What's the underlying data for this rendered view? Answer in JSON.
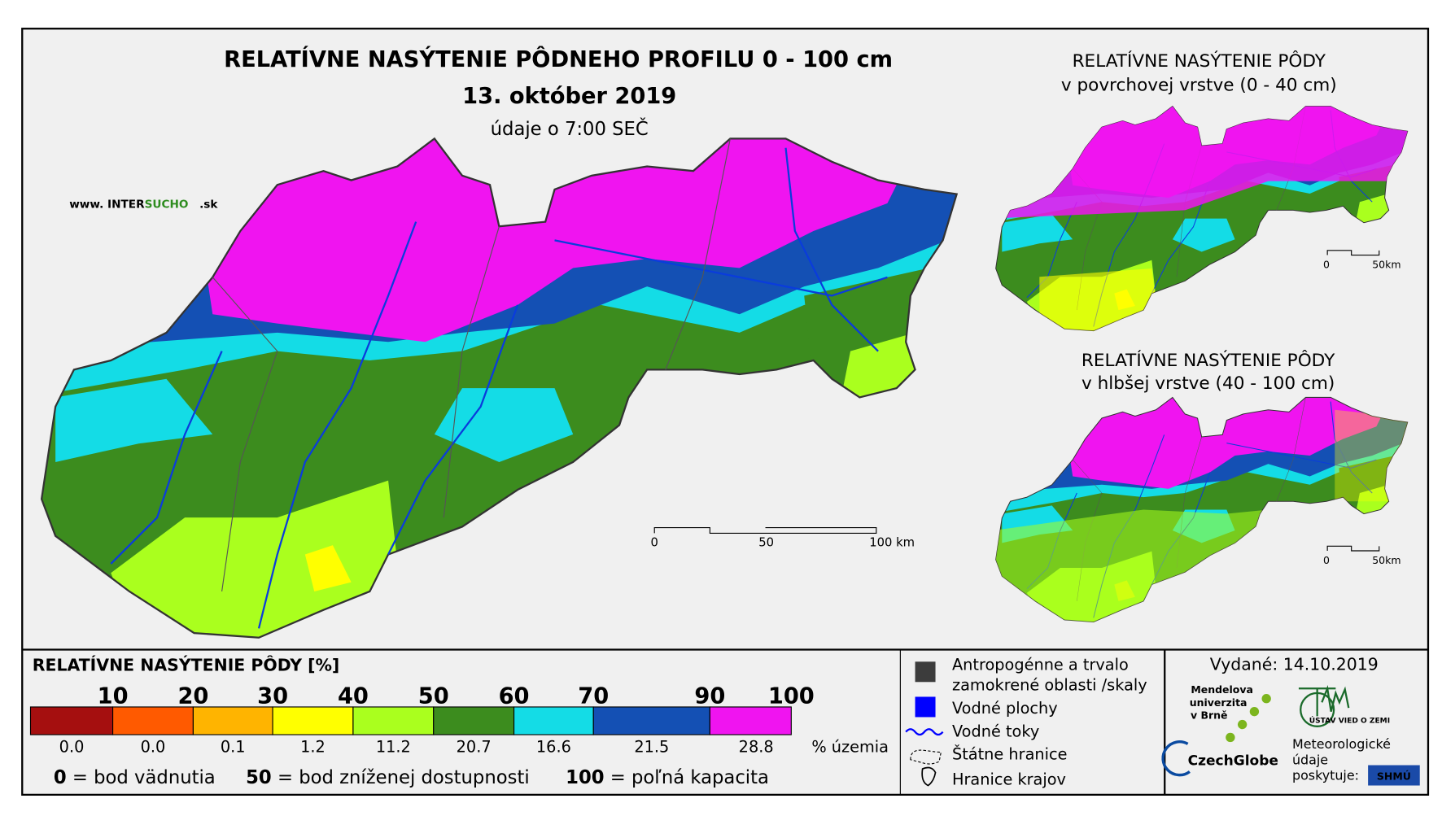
{
  "title": "RELATÍVNE NASÝTENIE PÔDNEHO PROFILU 0 - 100 cm",
  "date": "13. október 2019",
  "time_note": "údaje o 7:00 SEČ",
  "website": {
    "prefix": "www. INTER",
    "highlight": "SUCHO",
    "suffix": ".sk"
  },
  "main_scale": [
    "0",
    "50",
    "100 km"
  ],
  "insets": [
    {
      "title": [
        "RELATÍVNE NASÝTENIE PÔDY",
        "v povrchovej vrstve (0 - 40 cm)"
      ],
      "scale": [
        "0",
        "50km"
      ]
    },
    {
      "title": [
        "RELATÍVNE NASÝTENIE PÔDY",
        "v hlbšej vrstve (40 - 100 cm)"
      ],
      "scale": [
        "0",
        "50km"
      ]
    }
  ],
  "legend": {
    "title": "RELATÍVNE NASÝTENIE PÔDY [%]",
    "thresholds": [
      "10",
      "20",
      "30",
      "40",
      "50",
      "60",
      "70",
      "90",
      "100"
    ],
    "classes": [
      {
        "color": "#a50f0f",
        "share": "0.0"
      },
      {
        "color": "#ff5a00",
        "share": "0.0"
      },
      {
        "color": "#ffb400",
        "share": "0.1"
      },
      {
        "color": "#ffff00",
        "share": "1.2"
      },
      {
        "color": "#aaff1e",
        "share": "11.2"
      },
      {
        "color": "#3c8c1e",
        "share": "20.7"
      },
      {
        "color": "#14dce6",
        "share": "16.6"
      },
      {
        "color": "#1450b4",
        "share": "21.5"
      },
      {
        "color": "#f014f0",
        "share": "28.8"
      }
    ],
    "unit": "% územia",
    "notes": [
      {
        "value": "0",
        "text": "= bod vädnutia"
      },
      {
        "value": "50",
        "text": "= bod zníženej dostupnosti"
      },
      {
        "value": "100",
        "text": "= poľná kapacita"
      }
    ]
  },
  "symbols": [
    [
      "Antropogénne a trvalo",
      "zamokrené oblasti /skaly"
    ],
    [
      "Vodné plochy"
    ],
    [
      "Vodné toky"
    ],
    [
      "Štátne hranice"
    ],
    [
      "Hranice krajov"
    ]
  ],
  "issued": "Vydané: 14.10.2019",
  "credits": {
    "mendel": [
      "Mendelova",
      "univerzita",
      "v Brně"
    ],
    "czechglobe": "CzechGlobe",
    "ustav": "ÚSTAV VIED O ZEMI",
    "meteo": [
      "Meteorologické",
      "údaje",
      "poskytuje:"
    ],
    "shmu": "SHMÚ"
  }
}
